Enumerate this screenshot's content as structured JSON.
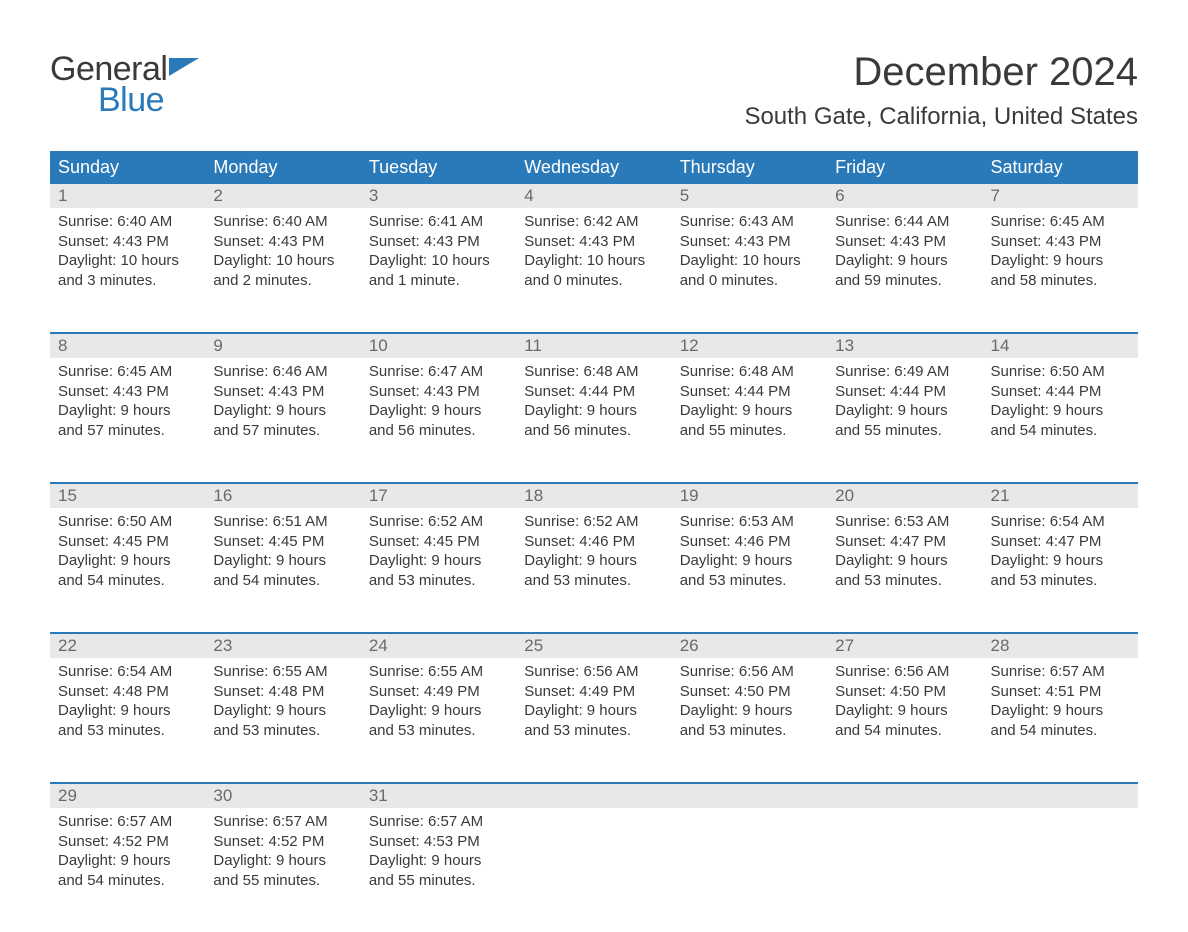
{
  "logo": {
    "line1": "General",
    "line2": "Blue",
    "flag_color": "#2a7ab9",
    "text_gray": "#3a3a3a"
  },
  "title": "December 2024",
  "location": "South Gate, California, United States",
  "colors": {
    "header_bg": "#2a7ab9",
    "daynum_bg": "#e8e8e8",
    "border": "#2a7ab9",
    "text": "#3a3a3a",
    "daynum_text": "#6a6a6a",
    "white": "#ffffff"
  },
  "fonts": {
    "title_size": 40,
    "location_size": 24,
    "dayheader_size": 18,
    "body_size": 15
  },
  "day_headers": [
    "Sunday",
    "Monday",
    "Tuesday",
    "Wednesday",
    "Thursday",
    "Friday",
    "Saturday"
  ],
  "weeks": [
    [
      {
        "n": "1",
        "sunrise": "Sunrise: 6:40 AM",
        "sunset": "Sunset: 4:43 PM",
        "d1": "Daylight: 10 hours",
        "d2": "and 3 minutes."
      },
      {
        "n": "2",
        "sunrise": "Sunrise: 6:40 AM",
        "sunset": "Sunset: 4:43 PM",
        "d1": "Daylight: 10 hours",
        "d2": "and 2 minutes."
      },
      {
        "n": "3",
        "sunrise": "Sunrise: 6:41 AM",
        "sunset": "Sunset: 4:43 PM",
        "d1": "Daylight: 10 hours",
        "d2": "and 1 minute."
      },
      {
        "n": "4",
        "sunrise": "Sunrise: 6:42 AM",
        "sunset": "Sunset: 4:43 PM",
        "d1": "Daylight: 10 hours",
        "d2": "and 0 minutes."
      },
      {
        "n": "5",
        "sunrise": "Sunrise: 6:43 AM",
        "sunset": "Sunset: 4:43 PM",
        "d1": "Daylight: 10 hours",
        "d2": "and 0 minutes."
      },
      {
        "n": "6",
        "sunrise": "Sunrise: 6:44 AM",
        "sunset": "Sunset: 4:43 PM",
        "d1": "Daylight: 9 hours",
        "d2": "and 59 minutes."
      },
      {
        "n": "7",
        "sunrise": "Sunrise: 6:45 AM",
        "sunset": "Sunset: 4:43 PM",
        "d1": "Daylight: 9 hours",
        "d2": "and 58 minutes."
      }
    ],
    [
      {
        "n": "8",
        "sunrise": "Sunrise: 6:45 AM",
        "sunset": "Sunset: 4:43 PM",
        "d1": "Daylight: 9 hours",
        "d2": "and 57 minutes."
      },
      {
        "n": "9",
        "sunrise": "Sunrise: 6:46 AM",
        "sunset": "Sunset: 4:43 PM",
        "d1": "Daylight: 9 hours",
        "d2": "and 57 minutes."
      },
      {
        "n": "10",
        "sunrise": "Sunrise: 6:47 AM",
        "sunset": "Sunset: 4:43 PM",
        "d1": "Daylight: 9 hours",
        "d2": "and 56 minutes."
      },
      {
        "n": "11",
        "sunrise": "Sunrise: 6:48 AM",
        "sunset": "Sunset: 4:44 PM",
        "d1": "Daylight: 9 hours",
        "d2": "and 56 minutes."
      },
      {
        "n": "12",
        "sunrise": "Sunrise: 6:48 AM",
        "sunset": "Sunset: 4:44 PM",
        "d1": "Daylight: 9 hours",
        "d2": "and 55 minutes."
      },
      {
        "n": "13",
        "sunrise": "Sunrise: 6:49 AM",
        "sunset": "Sunset: 4:44 PM",
        "d1": "Daylight: 9 hours",
        "d2": "and 55 minutes."
      },
      {
        "n": "14",
        "sunrise": "Sunrise: 6:50 AM",
        "sunset": "Sunset: 4:44 PM",
        "d1": "Daylight: 9 hours",
        "d2": "and 54 minutes."
      }
    ],
    [
      {
        "n": "15",
        "sunrise": "Sunrise: 6:50 AM",
        "sunset": "Sunset: 4:45 PM",
        "d1": "Daylight: 9 hours",
        "d2": "and 54 minutes."
      },
      {
        "n": "16",
        "sunrise": "Sunrise: 6:51 AM",
        "sunset": "Sunset: 4:45 PM",
        "d1": "Daylight: 9 hours",
        "d2": "and 54 minutes."
      },
      {
        "n": "17",
        "sunrise": "Sunrise: 6:52 AM",
        "sunset": "Sunset: 4:45 PM",
        "d1": "Daylight: 9 hours",
        "d2": "and 53 minutes."
      },
      {
        "n": "18",
        "sunrise": "Sunrise: 6:52 AM",
        "sunset": "Sunset: 4:46 PM",
        "d1": "Daylight: 9 hours",
        "d2": "and 53 minutes."
      },
      {
        "n": "19",
        "sunrise": "Sunrise: 6:53 AM",
        "sunset": "Sunset: 4:46 PM",
        "d1": "Daylight: 9 hours",
        "d2": "and 53 minutes."
      },
      {
        "n": "20",
        "sunrise": "Sunrise: 6:53 AM",
        "sunset": "Sunset: 4:47 PM",
        "d1": "Daylight: 9 hours",
        "d2": "and 53 minutes."
      },
      {
        "n": "21",
        "sunrise": "Sunrise: 6:54 AM",
        "sunset": "Sunset: 4:47 PM",
        "d1": "Daylight: 9 hours",
        "d2": "and 53 minutes."
      }
    ],
    [
      {
        "n": "22",
        "sunrise": "Sunrise: 6:54 AM",
        "sunset": "Sunset: 4:48 PM",
        "d1": "Daylight: 9 hours",
        "d2": "and 53 minutes."
      },
      {
        "n": "23",
        "sunrise": "Sunrise: 6:55 AM",
        "sunset": "Sunset: 4:48 PM",
        "d1": "Daylight: 9 hours",
        "d2": "and 53 minutes."
      },
      {
        "n": "24",
        "sunrise": "Sunrise: 6:55 AM",
        "sunset": "Sunset: 4:49 PM",
        "d1": "Daylight: 9 hours",
        "d2": "and 53 minutes."
      },
      {
        "n": "25",
        "sunrise": "Sunrise: 6:56 AM",
        "sunset": "Sunset: 4:49 PM",
        "d1": "Daylight: 9 hours",
        "d2": "and 53 minutes."
      },
      {
        "n": "26",
        "sunrise": "Sunrise: 6:56 AM",
        "sunset": "Sunset: 4:50 PM",
        "d1": "Daylight: 9 hours",
        "d2": "and 53 minutes."
      },
      {
        "n": "27",
        "sunrise": "Sunrise: 6:56 AM",
        "sunset": "Sunset: 4:50 PM",
        "d1": "Daylight: 9 hours",
        "d2": "and 54 minutes."
      },
      {
        "n": "28",
        "sunrise": "Sunrise: 6:57 AM",
        "sunset": "Sunset: 4:51 PM",
        "d1": "Daylight: 9 hours",
        "d2": "and 54 minutes."
      }
    ],
    [
      {
        "n": "29",
        "sunrise": "Sunrise: 6:57 AM",
        "sunset": "Sunset: 4:52 PM",
        "d1": "Daylight: 9 hours",
        "d2": "and 54 minutes."
      },
      {
        "n": "30",
        "sunrise": "Sunrise: 6:57 AM",
        "sunset": "Sunset: 4:52 PM",
        "d1": "Daylight: 9 hours",
        "d2": "and 55 minutes."
      },
      {
        "n": "31",
        "sunrise": "Sunrise: 6:57 AM",
        "sunset": "Sunset: 4:53 PM",
        "d1": "Daylight: 9 hours",
        "d2": "and 55 minutes."
      },
      null,
      null,
      null,
      null
    ]
  ]
}
